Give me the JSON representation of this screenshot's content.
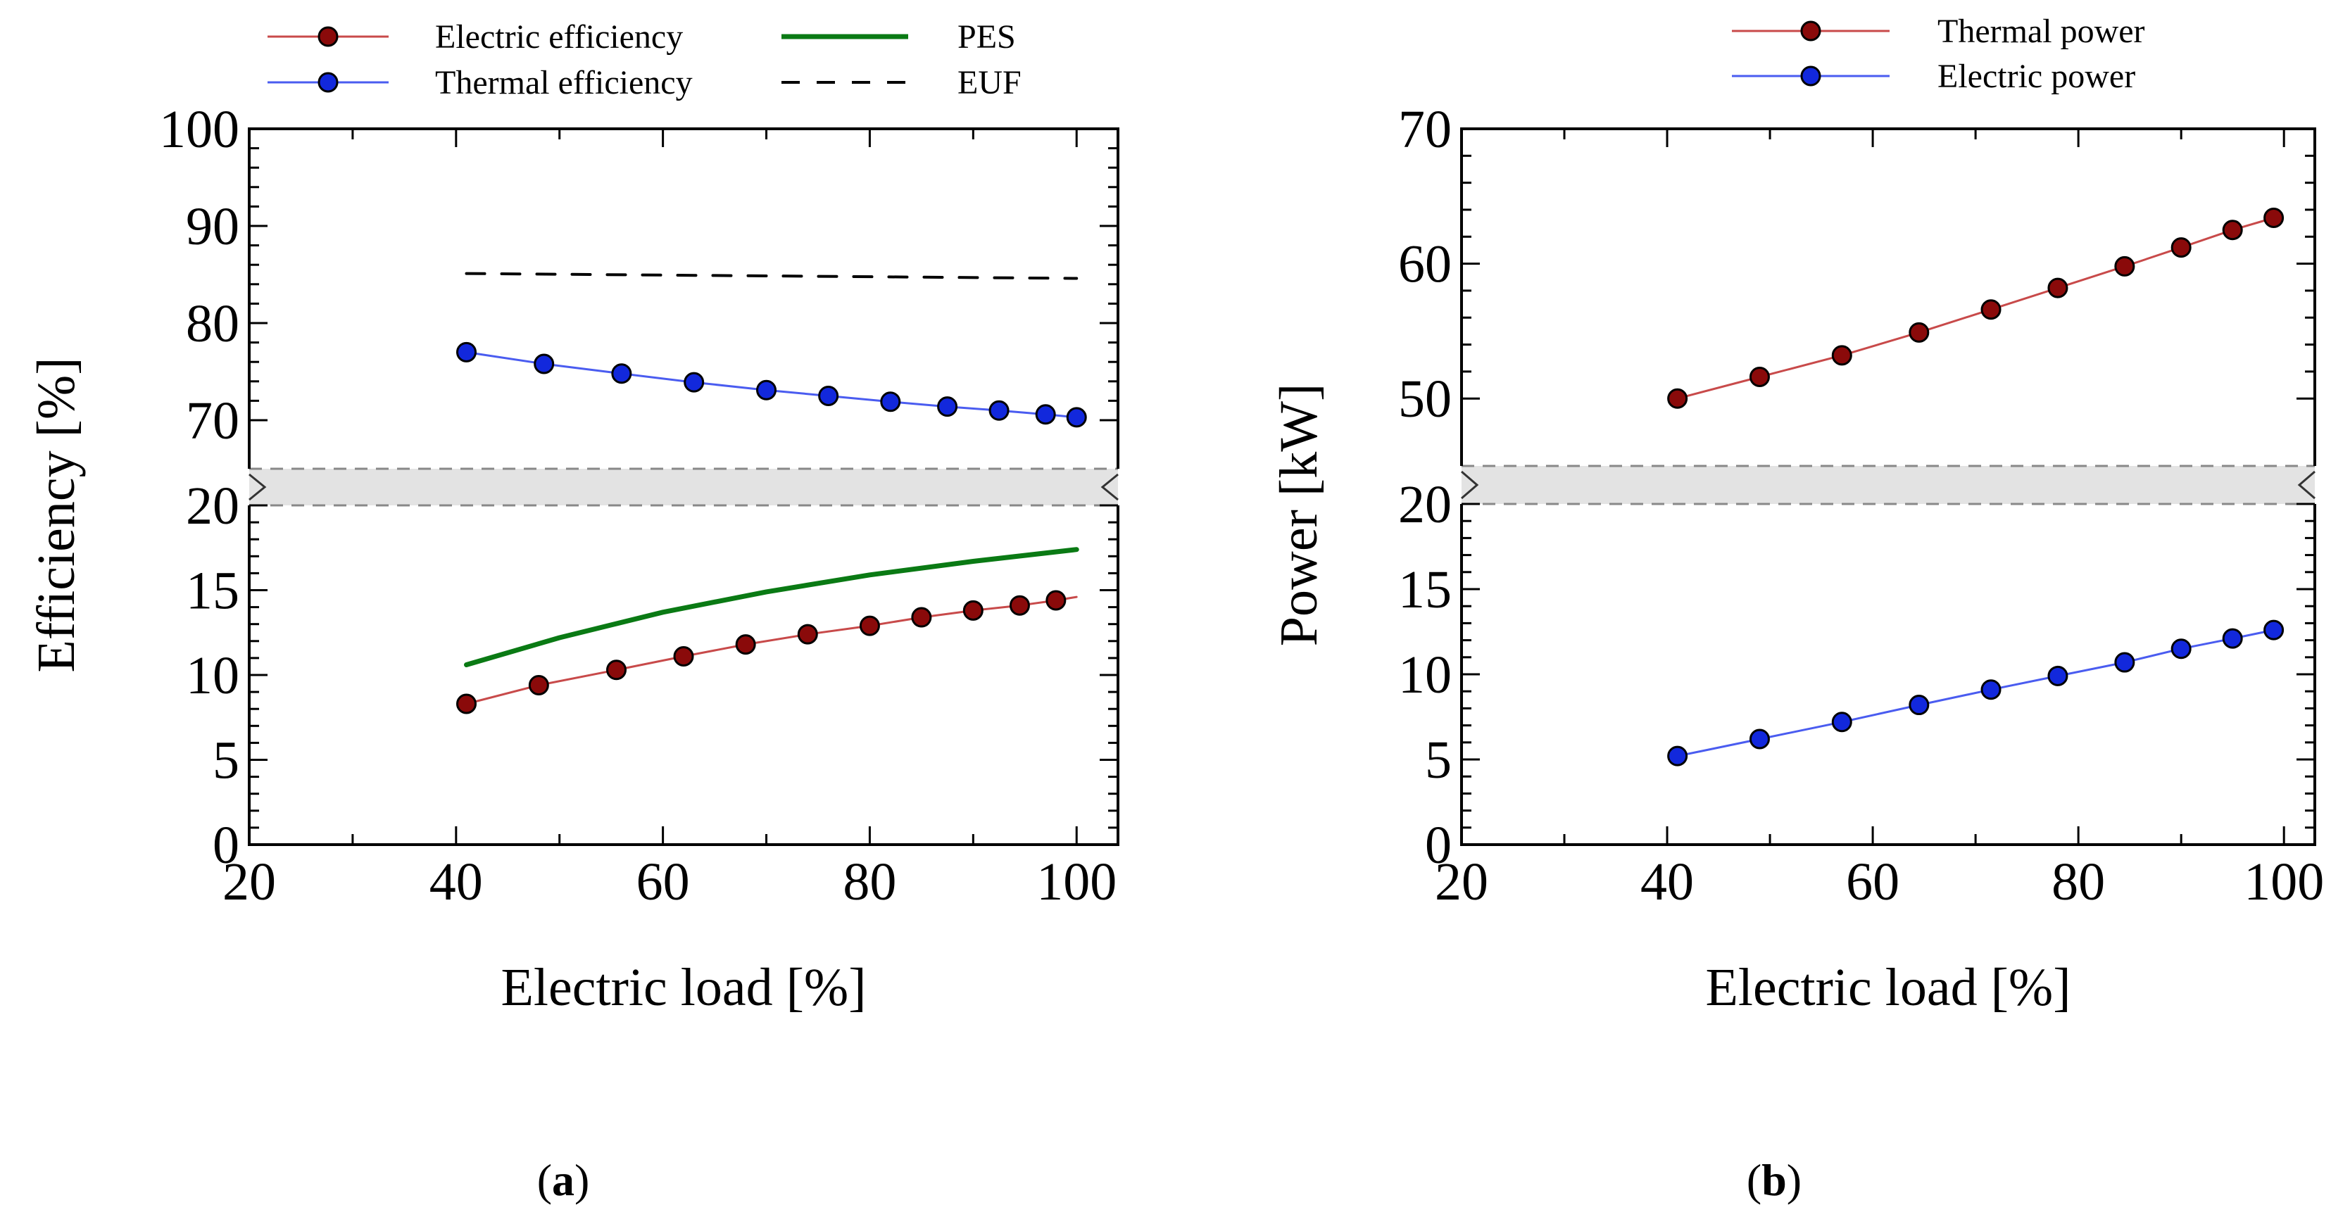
{
  "colors": {
    "electric_efficiency": "#c84a4a",
    "thermal_efficiency": "#4a5cf0",
    "pes": "#0a7a14",
    "euf": "#000000",
    "thermal_power": "#c84a4a",
    "electric_power": "#4a5cf0",
    "marker_red": "#8a0a0a",
    "marker_blue": "#1228dc",
    "break_band": "#e3e3e3"
  },
  "chart_data": [
    {
      "type": "line",
      "panel_label": {
        "open": "(",
        "letter": "a",
        "close": ")"
      },
      "xlabel": "Electric load [%]",
      "ylabel": "Efficiency [%]",
      "xlim": [
        20,
        104
      ],
      "x_ticks": [
        "20",
        "40",
        "60",
        "80",
        "100"
      ],
      "y_axis_broken": true,
      "y_lower_ticks": [
        "0",
        "5",
        "10",
        "15",
        "20"
      ],
      "y_upper_ticks": [
        "70",
        "80",
        "90",
        "100"
      ],
      "legend": [
        {
          "label": "Electric efficiency",
          "series": "Electric efficiency"
        },
        {
          "label": "Thermal efficiency",
          "series": "Thermal efficiency"
        },
        {
          "label": "PES",
          "series": "PES"
        },
        {
          "label": "EUF",
          "series": "EUF"
        }
      ],
      "series": [
        {
          "name": "Electric efficiency",
          "style": "line-marker",
          "color_key": "electric_efficiency",
          "marker_key": "marker_red",
          "x": [
            41,
            48,
            55.5,
            62,
            68,
            74,
            80,
            85,
            90,
            94.5,
            98,
            100
          ],
          "y": [
            8.3,
            9.4,
            10.3,
            11.1,
            11.8,
            12.4,
            12.9,
            13.4,
            13.8,
            14.1,
            14.4,
            14.6
          ],
          "markers": [
            true,
            true,
            true,
            true,
            true,
            true,
            true,
            true,
            true,
            true,
            true,
            false
          ]
        },
        {
          "name": "Thermal efficiency",
          "style": "line-marker",
          "color_key": "thermal_efficiency",
          "marker_key": "marker_blue",
          "x": [
            41,
            48.5,
            56,
            63,
            70,
            76,
            82,
            87.5,
            92.5,
            97,
            100
          ],
          "y": [
            77,
            75.8,
            74.8,
            73.9,
            73.1,
            72.5,
            71.9,
            71.4,
            71,
            70.6,
            70.3
          ],
          "markers": [
            true,
            true,
            true,
            true,
            true,
            true,
            true,
            true,
            true,
            true,
            true
          ]
        },
        {
          "name": "PES",
          "style": "line",
          "color_key": "pes",
          "x": [
            41,
            50,
            60,
            70,
            80,
            90,
            100
          ],
          "y": [
            10.6,
            12.2,
            13.7,
            14.9,
            15.9,
            16.7,
            17.4
          ]
        },
        {
          "name": "EUF",
          "style": "dashed",
          "color_key": "euf",
          "x": [
            41,
            100
          ],
          "y": [
            85.1,
            84.6
          ]
        }
      ]
    },
    {
      "type": "line",
      "panel_label": {
        "open": "(",
        "letter": "b",
        "close": ")"
      },
      "xlabel": "Electric load [%]",
      "ylabel": "Power [kW]",
      "xlim": [
        20,
        103
      ],
      "x_ticks": [
        "20",
        "40",
        "60",
        "80",
        "100"
      ],
      "y_axis_broken": true,
      "y_lower_ticks": [
        "0",
        "5",
        "10",
        "15",
        "20"
      ],
      "y_upper_ticks": [
        "50",
        "60",
        "70"
      ],
      "legend": [
        {
          "label": "Thermal power",
          "series": "Thermal power"
        },
        {
          "label": "Electric power",
          "series": "Electric power"
        }
      ],
      "series": [
        {
          "name": "Thermal power",
          "style": "line-marker",
          "color_key": "thermal_power",
          "marker_key": "marker_red",
          "x": [
            41,
            49,
            57,
            64.5,
            71.5,
            78,
            84.5,
            90,
            95,
            99
          ],
          "y": [
            50,
            51.6,
            53.2,
            54.9,
            56.6,
            58.2,
            59.8,
            61.2,
            62.5,
            63.4
          ],
          "markers": [
            true,
            true,
            true,
            true,
            true,
            true,
            true,
            true,
            true,
            true
          ]
        },
        {
          "name": "Electric power",
          "style": "line-marker",
          "color_key": "electric_power",
          "marker_key": "marker_blue",
          "x": [
            41,
            49,
            57,
            64.5,
            71.5,
            78,
            84.5,
            90,
            95,
            99
          ],
          "y": [
            5.2,
            6.2,
            7.2,
            8.2,
            9.1,
            9.9,
            10.7,
            11.5,
            12.1,
            12.6
          ],
          "markers": [
            true,
            true,
            true,
            true,
            true,
            true,
            true,
            true,
            true,
            true
          ]
        }
      ]
    }
  ]
}
